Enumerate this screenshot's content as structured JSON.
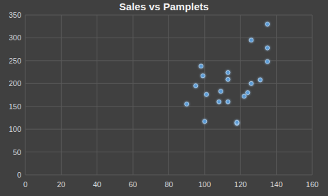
{
  "chart_data": {
    "type": "scatter",
    "title": "Sales vs Pamplets",
    "x": [
      90,
      95,
      98,
      99,
      100,
      101,
      108,
      109,
      113,
      113,
      113,
      118,
      118,
      122,
      124,
      126,
      126,
      131,
      135,
      135,
      135
    ],
    "values": [
      155,
      195,
      238,
      217,
      117,
      176,
      160,
      183,
      209,
      224,
      160,
      113,
      115,
      172,
      180,
      200,
      295,
      208,
      248,
      278,
      330
    ],
    "color": "#5b9bd5",
    "marker": "circle",
    "xlim": [
      0,
      160
    ],
    "xticks": [
      0,
      20,
      40,
      60,
      80,
      100,
      120,
      140,
      160
    ],
    "ylim": [
      0,
      350
    ],
    "yticks": [
      0,
      50,
      100,
      150,
      200,
      250,
      300,
      350
    ],
    "grid": true
  }
}
